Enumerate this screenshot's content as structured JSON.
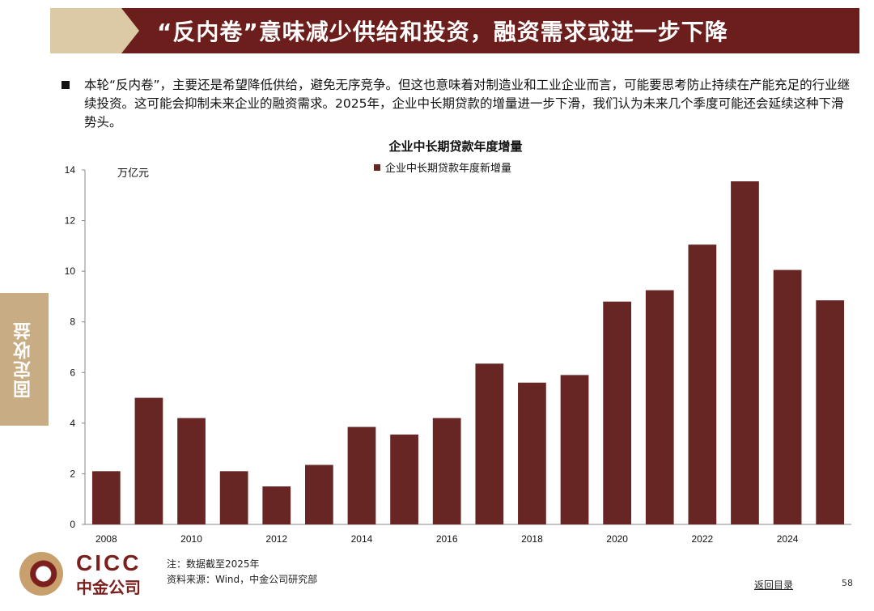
{
  "header": {
    "title": "“反内卷”意味减少供给和投资，融资需求或进一步下降"
  },
  "intro": {
    "text": "本轮“反内卷”，主要还是希望降低供给，避免无序竞争。但这也意味着对制造业和工业企业而言，可能要思考防止持续在产能充足的行业继续投资。这可能会抑制未来企业的融资需求。2025年，企业中长期贷款的增量进一步下滑，我们认为未来几个季度可能还会延续这种下滑势头。"
  },
  "side_tab": {
    "label": "固定收益"
  },
  "colors": {
    "bar": "#672524",
    "header": "#6b1e1b",
    "accent": "#c8ac83"
  },
  "chart_data": {
    "type": "bar",
    "title": "企业中长期贷款年度增量",
    "unit_label": "万亿元",
    "legend": [
      {
        "name": "企业中长期贷款年度新增量",
        "color": "#672524"
      }
    ],
    "legend_position": "top-center",
    "categories": [
      "2008",
      "2009",
      "2010",
      "2011",
      "2012",
      "2013",
      "2014",
      "2015",
      "2016",
      "2017",
      "2018",
      "2019",
      "2020",
      "2021",
      "2022",
      "2023",
      "2024",
      "2025"
    ],
    "x_tick_labels": [
      "2008",
      "2010",
      "2012",
      "2014",
      "2016",
      "2018",
      "2020",
      "2022",
      "2024"
    ],
    "values": [
      2.1,
      5.0,
      4.2,
      2.1,
      1.5,
      2.35,
      3.85,
      3.55,
      4.2,
      6.35,
      5.6,
      5.9,
      8.8,
      9.25,
      11.05,
      13.55,
      10.05,
      8.85
    ],
    "ylim": [
      0,
      14
    ],
    "y_ticks": [
      0,
      2,
      4,
      6,
      8,
      10,
      12,
      14
    ],
    "grid": false
  },
  "footer": {
    "note": "注：数据截至2025年",
    "source": "资料来源：Wind，中金公司研究部",
    "back_link": "返回目录",
    "page_number": "58",
    "logo_en": "CICC",
    "logo_cn": "中金公司"
  }
}
